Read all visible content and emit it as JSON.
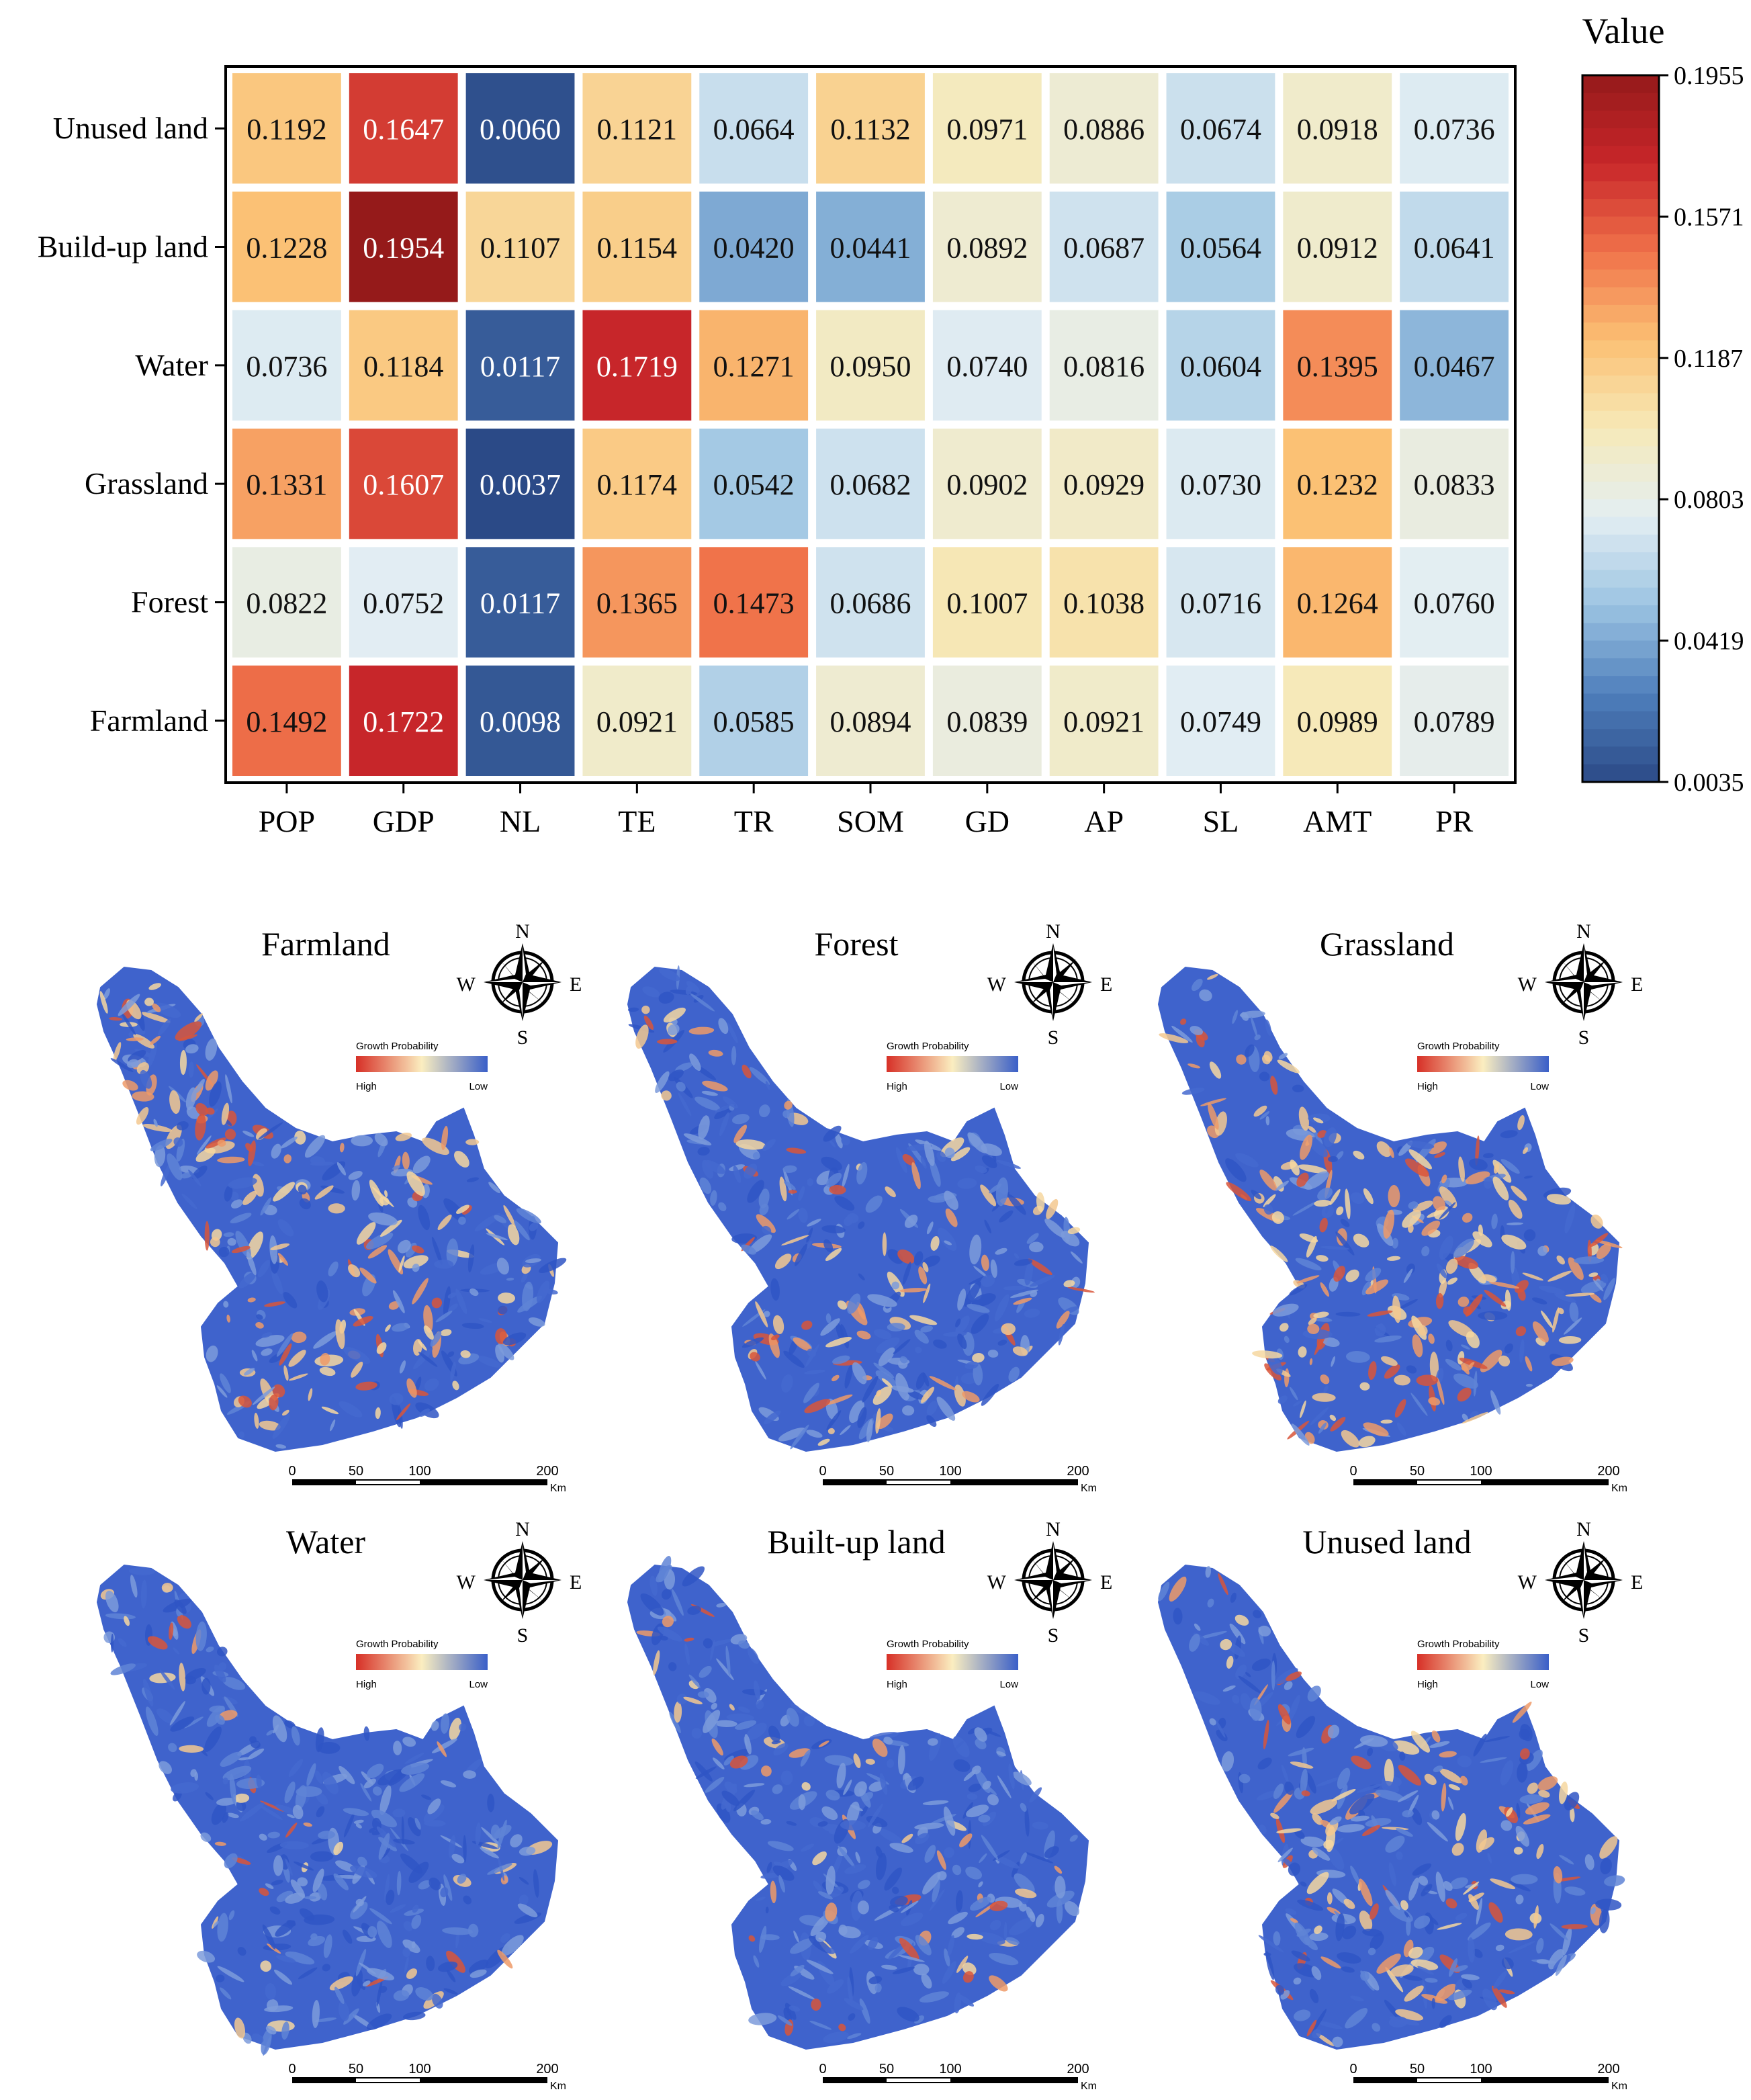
{
  "chart_data": {
    "type": "heatmap",
    "rows": [
      "Unused land",
      "Build-up land",
      "Water",
      "Grassland",
      "Forest",
      "Farmland"
    ],
    "columns": [
      "POP",
      "GDP",
      "NL",
      "TE",
      "TR",
      "SOM",
      "GD",
      "AP",
      "SL",
      "AMT",
      "PR"
    ],
    "values": [
      [
        0.1192,
        0.1647,
        0.006,
        0.1121,
        0.0664,
        0.1132,
        0.0971,
        0.0886,
        0.0674,
        0.0918,
        0.0736
      ],
      [
        0.1228,
        0.1954,
        0.1107,
        0.1154,
        0.042,
        0.0441,
        0.0892,
        0.0687,
        0.0564,
        0.0912,
        0.0641
      ],
      [
        0.0736,
        0.1184,
        0.0117,
        0.1719,
        0.1271,
        0.095,
        0.074,
        0.0816,
        0.0604,
        0.1395,
        0.0467
      ],
      [
        0.1331,
        0.1607,
        0.0037,
        0.1174,
        0.0542,
        0.0682,
        0.0902,
        0.0929,
        0.073,
        0.1232,
        0.0833
      ],
      [
        0.0822,
        0.0752,
        0.0117,
        0.1365,
        0.1473,
        0.0686,
        0.1007,
        0.1038,
        0.0716,
        0.1264,
        0.076
      ],
      [
        0.1492,
        0.1722,
        0.0098,
        0.0921,
        0.0585,
        0.0894,
        0.0839,
        0.0921,
        0.0749,
        0.0989,
        0.0789
      ]
    ],
    "value_labels": [
      [
        "0.1192",
        "0.1647",
        "0.0060",
        "0.1121",
        "0.0664",
        "0.1132",
        "0.0971",
        "0.0886",
        "0.0674",
        "0.0918",
        "0.0736"
      ],
      [
        "0.1228",
        "0.1954",
        "0.1107",
        "0.1154",
        "0.0420",
        "0.0441",
        "0.0892",
        "0.0687",
        "0.0564",
        "0.0912",
        "0.0641"
      ],
      [
        "0.0736",
        "0.1184",
        "0.0117",
        "0.1719",
        "0.1271",
        "0.0950",
        "0.0740",
        "0.0816",
        "0.0604",
        "0.1395",
        "0.0467"
      ],
      [
        "0.1331",
        "0.1607",
        "0.0037",
        "0.1174",
        "0.0542",
        "0.0682",
        "0.0902",
        "0.0929",
        "0.0730",
        "0.1232",
        "0.0833"
      ],
      [
        "0.0822",
        "0.0752",
        "0.0117",
        "0.1365",
        "0.1473",
        "0.0686",
        "0.1007",
        "0.1038",
        "0.0716",
        "0.1264",
        "0.0760"
      ],
      [
        "0.1492",
        "0.1722",
        "0.0098",
        "0.0921",
        "0.0585",
        "0.0894",
        "0.0839",
        "0.0921",
        "0.0749",
        "0.0989",
        "0.0789"
      ]
    ],
    "colorbar": {
      "title": "Value",
      "ticks": [
        "0.1955",
        "0.1571",
        "0.1187",
        "0.0803",
        "0.0419",
        "0.0035"
      ],
      "min": 0.0035,
      "max": 0.1955,
      "colors": [
        "#2b4a87",
        "#4f7fbc",
        "#9cc4e2",
        "#e3eef3",
        "#f6e9b8",
        "#fbc073",
        "#f0724a",
        "#c8262a",
        "#951a1a"
      ]
    },
    "maps": [
      {
        "title": "Farmland",
        "legend_title": "Growth Probability",
        "legend_high": "High",
        "legend_low": "Low"
      },
      {
        "title": "Forest",
        "legend_title": "Growth Probability",
        "legend_high": "High",
        "legend_low": "Low"
      },
      {
        "title": "Grassland",
        "legend_title": "Growth Probability",
        "legend_high": "High",
        "legend_low": "Low"
      },
      {
        "title": "Water",
        "legend_title": "Growth Probability",
        "legend_high": "High",
        "legend_low": "Low"
      },
      {
        "title": "Built-up land",
        "legend_title": "Growth Probability",
        "legend_high": "High",
        "legend_low": "Low"
      },
      {
        "title": "Unused land",
        "legend_title": "Growth Probability",
        "legend_high": "High",
        "legend_low": "Low"
      }
    ],
    "compass": {
      "north": "N",
      "south": "S",
      "east": "E",
      "west": "W"
    },
    "scalebar": {
      "labels": [
        "0",
        "50",
        "100",
        "200"
      ],
      "unit": "Km"
    }
  }
}
